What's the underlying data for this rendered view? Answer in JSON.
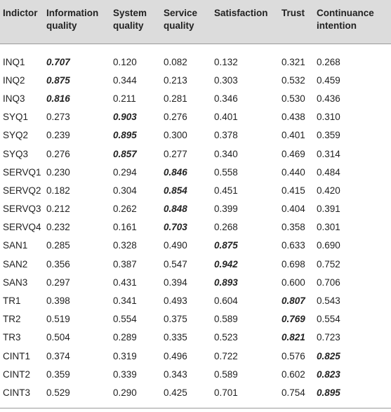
{
  "table": {
    "headers": [
      "Indictor",
      "Information quality",
      "System quality",
      "Service quality",
      "Satisfaction",
      "Trust",
      "Continuance intention"
    ],
    "rows": [
      {
        "label": "INQ1",
        "values": [
          "0.707",
          "0.120",
          "0.082",
          "0.132",
          "0.321",
          "0.268"
        ],
        "loading_index": 0
      },
      {
        "label": "INQ2",
        "values": [
          "0.875",
          "0.344",
          "0.213",
          "0.303",
          "0.532",
          "0.459"
        ],
        "loading_index": 0
      },
      {
        "label": "INQ3",
        "values": [
          "0.816",
          "0.211",
          "0.281",
          "0.346",
          "0.530",
          "0.436"
        ],
        "loading_index": 0
      },
      {
        "label": "SYQ1",
        "values": [
          "0.273",
          "0.903",
          "0.276",
          "0.401",
          "0.438",
          "0.310"
        ],
        "loading_index": 1
      },
      {
        "label": "SYQ2",
        "values": [
          "0.239",
          "0.895",
          "0.300",
          "0.378",
          "0.401",
          "0.359"
        ],
        "loading_index": 1
      },
      {
        "label": "SYQ3",
        "values": [
          "0.276",
          "0.857",
          "0.277",
          "0.340",
          "0.469",
          "0.314"
        ],
        "loading_index": 1
      },
      {
        "label": "SERVQ1",
        "values": [
          "0.230",
          "0.294",
          "0.846",
          "0.558",
          "0.440",
          "0.484"
        ],
        "loading_index": 2
      },
      {
        "label": "SERVQ2",
        "values": [
          "0.182",
          "0.304",
          "0.854",
          "0.451",
          "0.415",
          "0.420"
        ],
        "loading_index": 2
      },
      {
        "label": "SERVQ3",
        "values": [
          "0.212",
          "0.262",
          "0.848",
          "0.399",
          "0.404",
          "0.391"
        ],
        "loading_index": 2
      },
      {
        "label": "SERVQ4",
        "values": [
          "0.232",
          "0.161",
          "0.703",
          "0.268",
          "0.358",
          "0.301"
        ],
        "loading_index": 2
      },
      {
        "label": "SAN1",
        "values": [
          "0.285",
          "0.328",
          "0.490",
          "0.875",
          "0.633",
          "0.690"
        ],
        "loading_index": 3
      },
      {
        "label": "SAN2",
        "values": [
          "0.356",
          "0.387",
          "0.547",
          "0.942",
          "0.698",
          "0.752"
        ],
        "loading_index": 3
      },
      {
        "label": "SAN3",
        "values": [
          "0.297",
          "0.431",
          "0.394",
          "0.893",
          "0.600",
          "0.706"
        ],
        "loading_index": 3
      },
      {
        "label": "TR1",
        "values": [
          "0.398",
          "0.341",
          "0.493",
          "0.604",
          "0.807",
          "0.543"
        ],
        "loading_index": 4
      },
      {
        "label": "TR2",
        "values": [
          "0.519",
          "0.554",
          "0.375",
          "0.589",
          "0.769",
          "0.554"
        ],
        "loading_index": 4
      },
      {
        "label": "TR3",
        "values": [
          "0.504",
          "0.289",
          "0.335",
          "0.523",
          "0.821",
          "0.723"
        ],
        "loading_index": 4
      },
      {
        "label": "CINT1",
        "values": [
          "0.374",
          "0.319",
          "0.496",
          "0.722",
          "0.576",
          "0.825"
        ],
        "loading_index": 5
      },
      {
        "label": "CINT2",
        "values": [
          "0.359",
          "0.339",
          "0.343",
          "0.589",
          "0.602",
          "0.823"
        ],
        "loading_index": 5
      },
      {
        "label": "CINT3",
        "values": [
          "0.529",
          "0.290",
          "0.425",
          "0.701",
          "0.754",
          "0.895"
        ],
        "loading_index": 5
      }
    ]
  },
  "colors": {
    "header_background": "#dcdcdc",
    "text": "#222222",
    "rule": "#9a9a9a"
  }
}
